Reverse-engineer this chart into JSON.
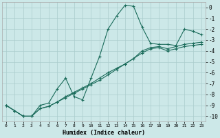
{
  "xlabel": "Humidex (Indice chaleur)",
  "background_color": "#cce8e8",
  "grid_color": "#aacccc",
  "line_color": "#1a6b5a",
  "xlim": [
    -0.5,
    23.5
  ],
  "ylim": [
    -10.5,
    0.5
  ],
  "xticks": [
    0,
    1,
    2,
    3,
    4,
    5,
    6,
    7,
    8,
    9,
    10,
    11,
    12,
    13,
    14,
    15,
    16,
    17,
    18,
    19,
    20,
    21,
    22,
    23
  ],
  "yticks": [
    0,
    -1,
    -2,
    -3,
    -4,
    -5,
    -6,
    -7,
    -8,
    -9,
    -10
  ],
  "series1_x": [
    0,
    1,
    2,
    3,
    4,
    5,
    6,
    7,
    8,
    9,
    10,
    11,
    12,
    13,
    14,
    15,
    16,
    17,
    18,
    19,
    20,
    21,
    22,
    23
  ],
  "series1_y": [
    -9.0,
    -9.5,
    -10.0,
    -10.0,
    -9.0,
    -8.8,
    -7.5,
    -6.5,
    -8.2,
    -8.5,
    -6.5,
    -4.5,
    -2.0,
    -0.8,
    0.2,
    0.1,
    -1.8,
    -3.3,
    -3.4,
    -3.4,
    -3.5,
    -2.0,
    -2.2,
    -2.5
  ],
  "series2_x": [
    0,
    1,
    2,
    3,
    4,
    5,
    6,
    7,
    8,
    9,
    10,
    11,
    12,
    13,
    14,
    15,
    16,
    17,
    18,
    19,
    20,
    21,
    22,
    23
  ],
  "series2_y": [
    -9.0,
    -9.5,
    -10.0,
    -10.0,
    -9.3,
    -9.1,
    -8.7,
    -8.2,
    -7.8,
    -7.4,
    -7.0,
    -6.5,
    -6.0,
    -5.6,
    -5.2,
    -4.7,
    -4.0,
    -3.7,
    -3.6,
    -3.8,
    -3.6,
    -3.4,
    -3.3,
    -3.2
  ],
  "series3_x": [
    0,
    1,
    2,
    3,
    4,
    5,
    6,
    7,
    8,
    9,
    10,
    11,
    12,
    13,
    14,
    15,
    16,
    17,
    18,
    19,
    20,
    21,
    22,
    23
  ],
  "series3_y": [
    -9.0,
    -9.5,
    -10.0,
    -10.0,
    -9.3,
    -9.1,
    -8.7,
    -8.3,
    -7.9,
    -7.5,
    -7.1,
    -6.7,
    -6.2,
    -5.7,
    -5.2,
    -4.7,
    -4.2,
    -3.8,
    -3.7,
    -4.0,
    -3.8,
    -3.6,
    -3.5,
    -3.4
  ]
}
